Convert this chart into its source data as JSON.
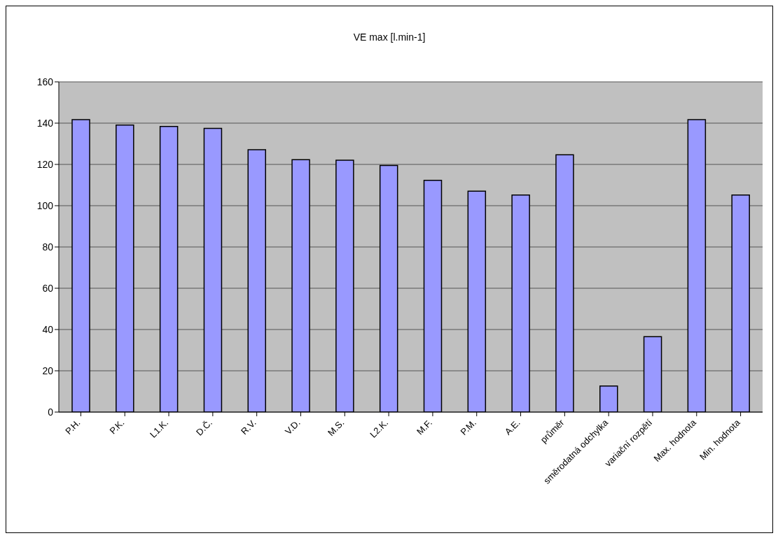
{
  "chart_data": {
    "type": "bar",
    "title": "VE max [l.min-1]",
    "categories": [
      "P.H.",
      "P.K.",
      "L1.K.",
      "D.Č.",
      "R.V.",
      "V.D.",
      "M.S.",
      "L2.K.",
      "M.F.",
      "P.M.",
      "A.E.",
      "průměr",
      "směrodatná odchylka",
      "variační rozpětí",
      "Max. hodnota",
      "Min. hodnota"
    ],
    "values": [
      141.7,
      139.1,
      138.4,
      137.5,
      127.1,
      122.3,
      122.0,
      119.5,
      112.3,
      107.0,
      105.2,
      124.7,
      12.6,
      36.5,
      141.7,
      105.2
    ],
    "color": "#9999ff",
    "ylim": [
      0,
      160
    ],
    "yticks": [
      0,
      20,
      40,
      60,
      80,
      100,
      120,
      140,
      160
    ],
    "grid": "y",
    "legend": false
  }
}
